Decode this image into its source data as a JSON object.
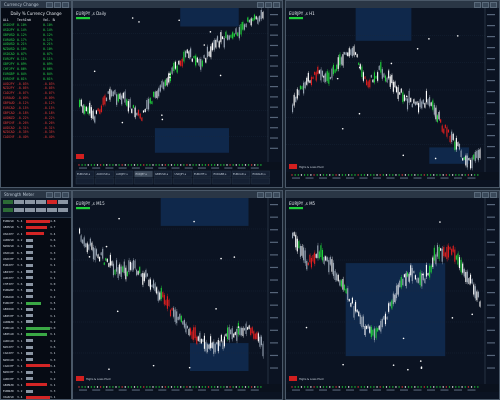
{
  "currency_window": {
    "title": "Currency Change",
    "heading": "Daily % Currency Change",
    "col_headers": [
      "ALL",
      "TechIndex",
      "",
      "Vol. Bal/H4"
    ],
    "rows": [
      {
        "name": "USDCHF",
        "pct": "0.10%",
        "color": "#26d34a"
      },
      {
        "name": "USDJPY",
        "pct": "0.14%",
        "color": "#26d34a"
      },
      {
        "name": "GBPUSD",
        "pct": "0.12%",
        "color": "#26d34a"
      },
      {
        "name": "EURUSD",
        "pct": "0.17%",
        "color": "#26d34a"
      },
      {
        "name": "AUDUSD",
        "pct": "0.21%",
        "color": "#26d34a"
      },
      {
        "name": "NZDUSD",
        "pct": "0.10%",
        "color": "#26d34a"
      },
      {
        "name": "USDCAD",
        "pct": "0.07%",
        "color": "#26d34a"
      },
      {
        "name": "EURJPY",
        "pct": "0.11%",
        "color": "#26d34a"
      },
      {
        "name": "GBPJPY",
        "pct": "0.09%",
        "color": "#26d34a"
      },
      {
        "name": "CHFJPY",
        "pct": "0.06%",
        "color": "#26d34a"
      },
      {
        "name": "EURGBP",
        "pct": "0.04%",
        "color": "#26d34a"
      },
      {
        "name": "EURCHF",
        "pct": "0.01%",
        "color": "#26d34a"
      },
      {
        "name": "AUDJPY",
        "pct": "-0.03%",
        "color": "#e33b3b"
      },
      {
        "name": "NZDJPY",
        "pct": "-0.05%",
        "color": "#e33b3b"
      },
      {
        "name": "CADJPY",
        "pct": "-0.07%",
        "color": "#e33b3b"
      },
      {
        "name": "EURAUD",
        "pct": "-0.09%",
        "color": "#e33b3b"
      },
      {
        "name": "GBPAUD",
        "pct": "-0.12%",
        "color": "#e33b3b"
      },
      {
        "name": "EURCAD",
        "pct": "-0.15%",
        "color": "#e33b3b"
      },
      {
        "name": "GBPCAD",
        "pct": "-0.18%",
        "color": "#e33b3b"
      },
      {
        "name": "AUDNZD",
        "pct": "-0.22%",
        "color": "#e33b3b"
      },
      {
        "name": "GBPCHF",
        "pct": "-0.26%",
        "color": "#e33b3b"
      },
      {
        "name": "AUDCAD",
        "pct": "-0.31%",
        "color": "#e33b3b"
      },
      {
        "name": "NZDCAD",
        "pct": "-0.35%",
        "color": "#e33b3b"
      },
      {
        "name": "CADCHF",
        "pct": "-0.40%",
        "color": "#e33b3b"
      }
    ]
  },
  "strength_window": {
    "title": "Strength Meter",
    "rows": [
      {
        "name": "EURUSD",
        "v1": "5.4",
        "v2": "4.8",
        "bar": 0.35,
        "color": "#d32525"
      },
      {
        "name": "GBPUSD",
        "v1": "5.3",
        "v2": "4.7",
        "bar": 0.3,
        "color": "#d32525"
      },
      {
        "name": "USDJPY",
        "v1": "2.1",
        "v2": "3.4",
        "bar": 0.25,
        "color": "#d32525"
      },
      {
        "name": "AUDUSD",
        "v1": "4.2",
        "v2": "3.6",
        "bar": 0.05,
        "color": "#8a95a3"
      },
      {
        "name": "NZDUSD",
        "v1": "4.1",
        "v2": "3.5",
        "bar": 0.05,
        "color": "#8a95a3"
      },
      {
        "name": "USDCAD",
        "v1": "6.5",
        "v2": "3.3",
        "bar": 0.05,
        "color": "#8a95a3"
      },
      {
        "name": "USDCHF",
        "v1": "3.4",
        "v2": "3.2",
        "bar": 0.05,
        "color": "#8a95a3"
      },
      {
        "name": "EURJPY",
        "v1": "3.6",
        "v2": "3.1",
        "bar": 0.05,
        "color": "#8a95a3"
      },
      {
        "name": "GBPJPY",
        "v1": "3.4",
        "v2": "3.0",
        "bar": 0.05,
        "color": "#8a95a3"
      },
      {
        "name": "AUDJPY",
        "v1": "3.6",
        "v2": "3.1",
        "bar": 0.05,
        "color": "#8a95a3"
      },
      {
        "name": "CHFJPY",
        "v1": "3.6",
        "v2": "3.0",
        "bar": 0.05,
        "color": "#8a95a3"
      },
      {
        "name": "EURGBP",
        "v1": "3.5",
        "v2": "3.1",
        "bar": 0.05,
        "color": "#8a95a3"
      },
      {
        "name": "EURAUD",
        "v1": "3.4",
        "v2": "3.2",
        "bar": 0.05,
        "color": "#8a95a3"
      },
      {
        "name": "EURCHF",
        "v1": "3.4",
        "v2": "3.5",
        "bar": 0.2,
        "color": "#3aa845"
      },
      {
        "name": "GBPAUD",
        "v1": "3.1",
        "v2": "3.4",
        "bar": 0.05,
        "color": "#8a95a3"
      },
      {
        "name": "GBPCHF",
        "v1": "3.6",
        "v2": "3.1",
        "bar": 0.05,
        "color": "#8a95a3"
      },
      {
        "name": "AUDNZD",
        "v1": "3.3",
        "v2": "3.2",
        "bar": 0.05,
        "color": "#8a95a3"
      },
      {
        "name": "EURCAD",
        "v1": "3.1",
        "v2": "3.0",
        "bar": 0.35,
        "color": "#3aa845"
      },
      {
        "name": "GBPCAD",
        "v1": "3.4",
        "v2": "3.1",
        "bar": 0.3,
        "color": "#3aa845"
      },
      {
        "name": "AUDCAD",
        "v1": "3.1",
        "v2": "3.2",
        "bar": 0.05,
        "color": "#8a95a3"
      },
      {
        "name": "NZDJPY",
        "v1": "3.3",
        "v2": "3.6",
        "bar": 0.05,
        "color": "#8a95a3"
      },
      {
        "name": "CADJPY",
        "v1": "3.1",
        "v2": "3.1",
        "bar": 0.05,
        "color": "#8a95a3"
      },
      {
        "name": "NZDCAD",
        "v1": "3.1",
        "v2": "3.3",
        "bar": 0.05,
        "color": "#8a95a3"
      },
      {
        "name": "CADCHF",
        "v1": "3.1",
        "v2": "3.4",
        "bar": 0.35,
        "color": "#d32525"
      },
      {
        "name": "NZDCHF",
        "v1": "3.3",
        "v2": "3.1",
        "bar": 0.05,
        "color": "#8a95a3"
      },
      {
        "name": "AUDCHF",
        "v1": "3.3",
        "v2": "3.2",
        "bar": 0.05,
        "color": "#8a95a3"
      },
      {
        "name": "GBPNZD",
        "v1": "3.1",
        "v2": "3.1",
        "bar": 0.3,
        "color": "#d32525"
      },
      {
        "name": "EURNZD",
        "v1": "3.2",
        "v2": "3.3",
        "bar": 0.05,
        "color": "#8a95a3"
      },
      {
        "name": "XAUUSD",
        "v1": "3.4",
        "v2": "3.1",
        "bar": 0.35,
        "color": "#d32525"
      }
    ]
  },
  "charts": [
    {
      "id": "c1",
      "title": "EURJPY ,s Daily",
      "symbol_tabs": [
        "EURUSD,s",
        "AUDUSD,s",
        "AUDJPY,s",
        "EURJPY,s",
        "GBPUSD,s",
        "USDJPY,s",
        "EURCHF,s",
        "EURGBP,s",
        "EURCAD,s",
        "EURAUD,s"
      ]
    },
    {
      "id": "c2",
      "title": "EURJPY ,s H1",
      "label_legend": "Highs & Lows Pivot"
    },
    {
      "id": "c3",
      "title": "EURJPY ,s M15",
      "label_legend": "Highs & Lows Pivot"
    },
    {
      "id": "c4",
      "title": "EURJPY ,s M5",
      "label_legend": "Highs & Lows Pivot"
    }
  ],
  "colors": {
    "bull": "#ffffff",
    "bear": "#e01f1f",
    "accent_green": "#1fd13a",
    "panel": "#0b1322",
    "zone": "#13305a"
  }
}
